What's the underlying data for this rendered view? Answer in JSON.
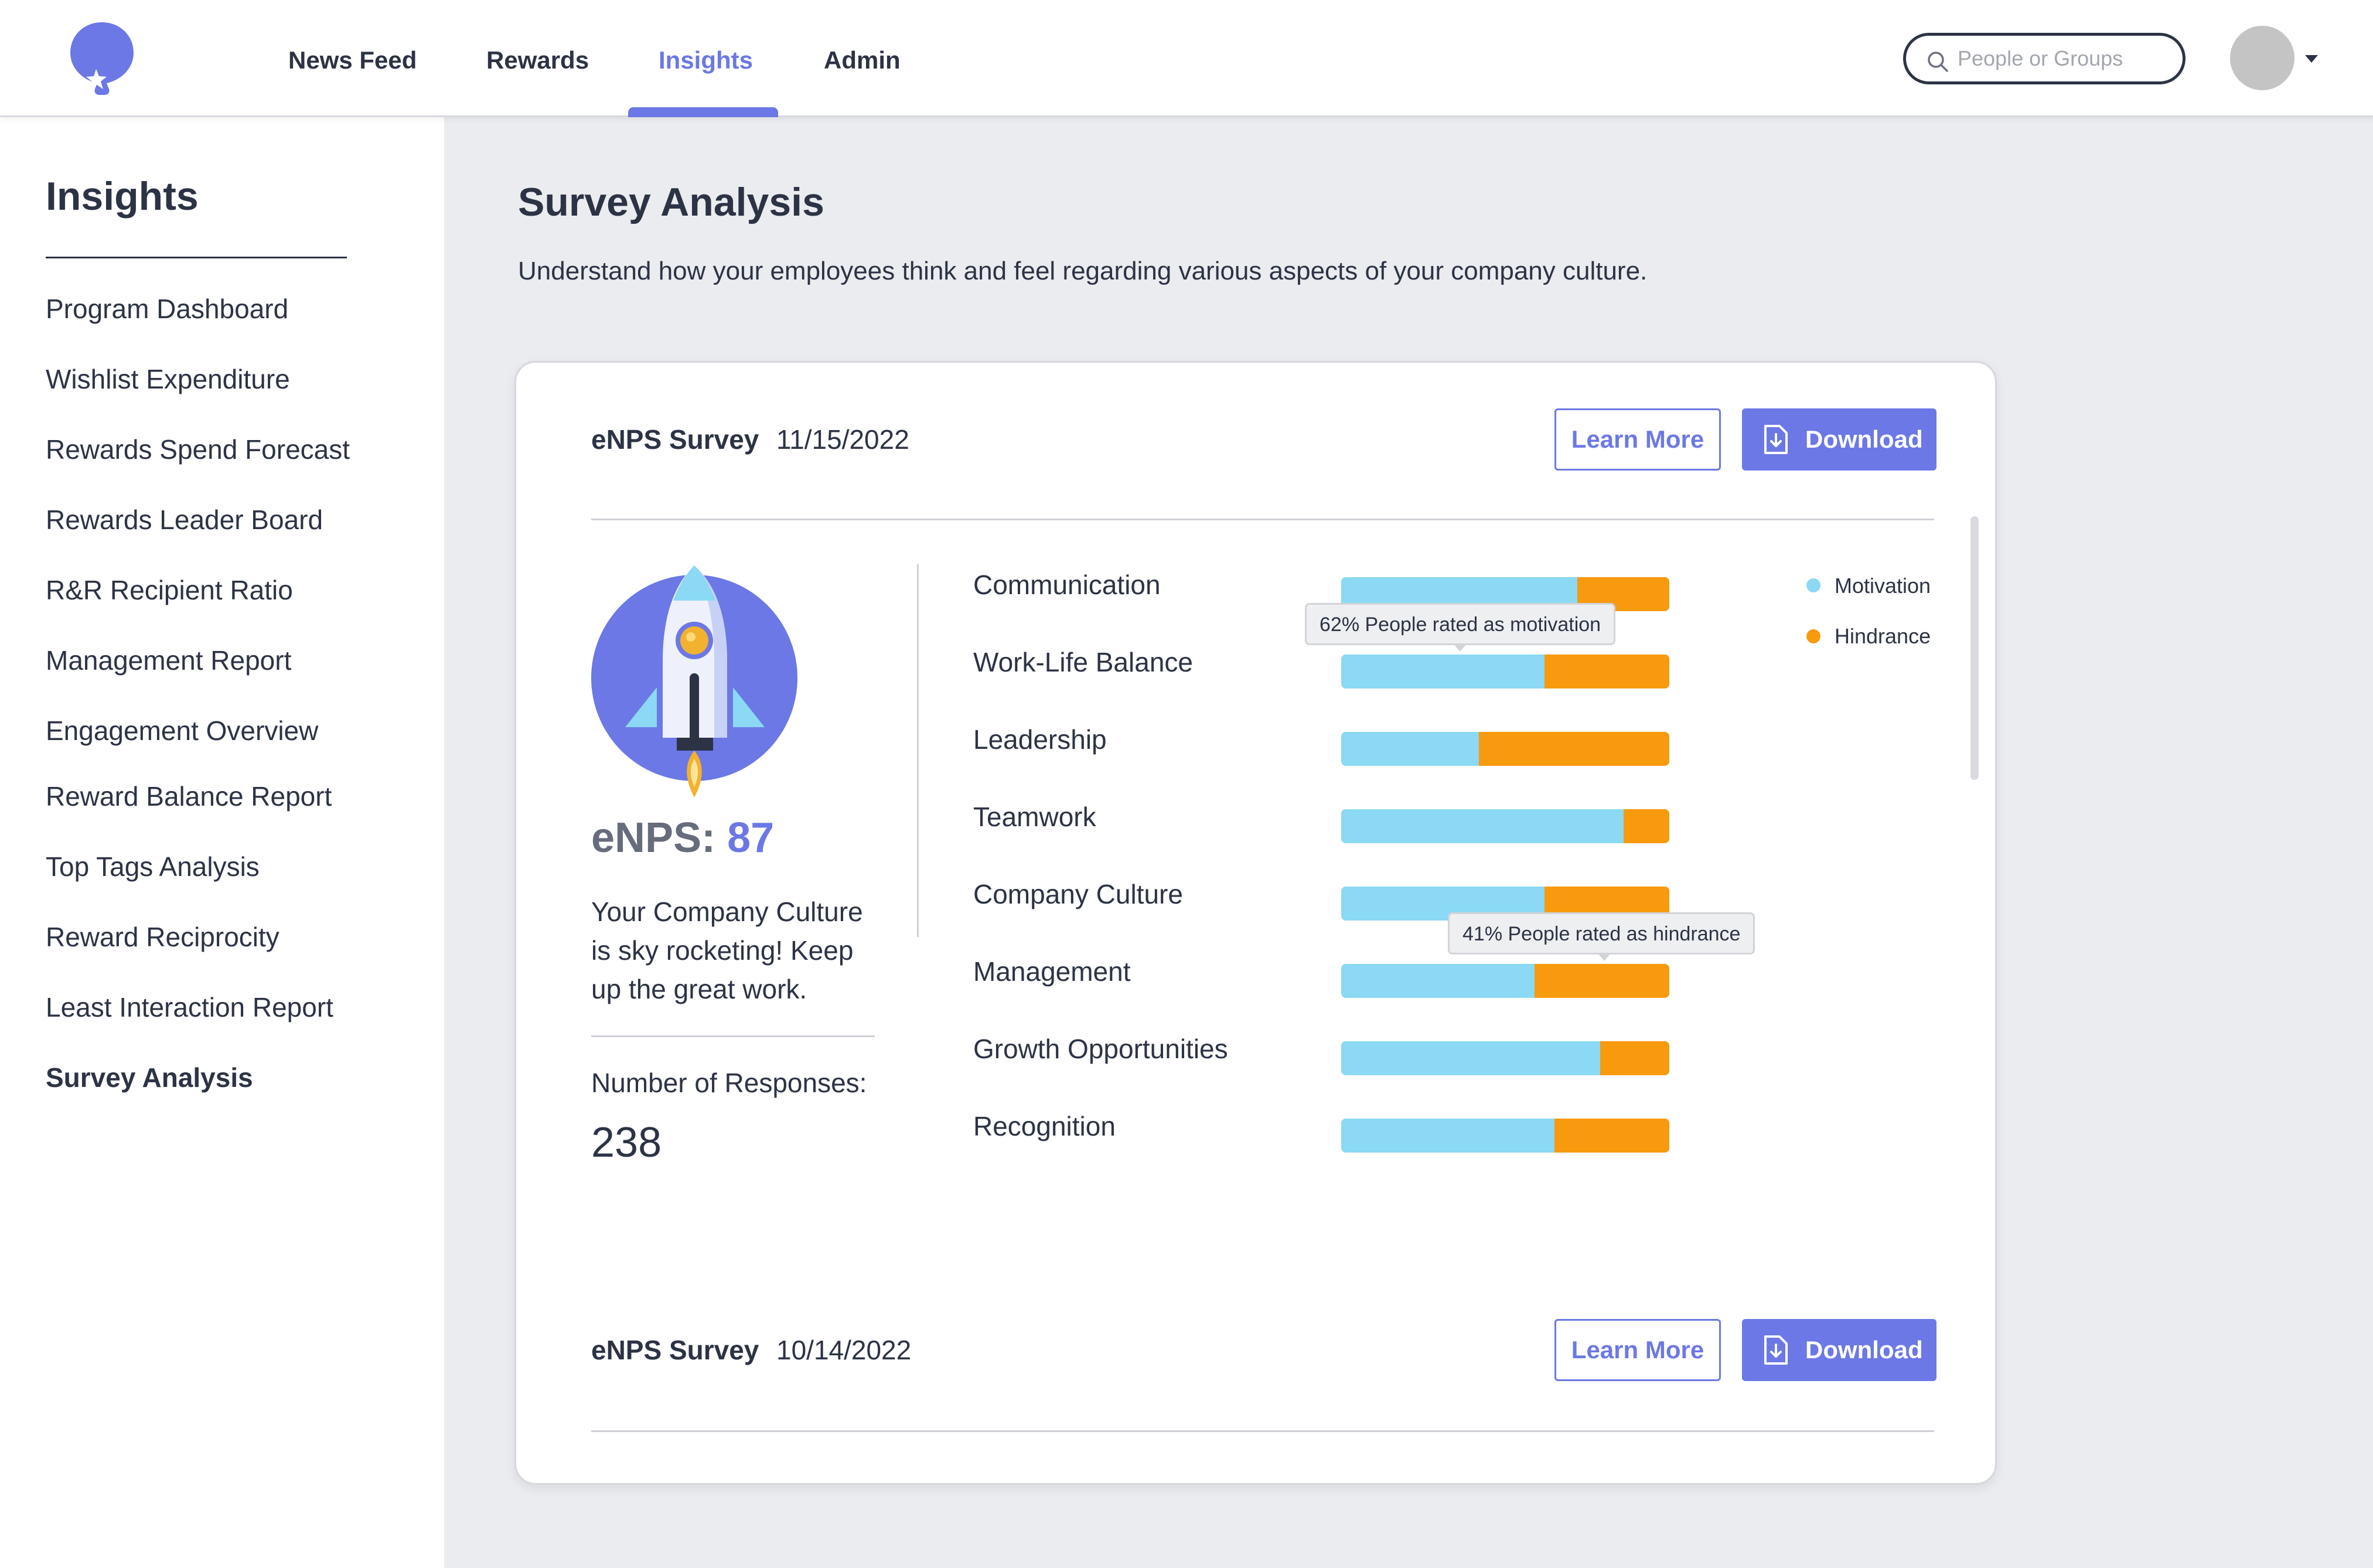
{
  "app": {
    "logo": "balloon-star-logo"
  },
  "nav": {
    "items": [
      {
        "label": "News Feed"
      },
      {
        "label": "Rewards"
      },
      {
        "label": "Insights"
      },
      {
        "label": "Admin"
      }
    ],
    "active": "Insights"
  },
  "search": {
    "placeholder": "People or Groups",
    "value": ""
  },
  "sidebar": {
    "title": "Insights",
    "items": [
      {
        "label": "Program Dashboard"
      },
      {
        "label": "Wishlist Expenditure"
      },
      {
        "label": "Rewards Spend Forecast"
      },
      {
        "label": "Rewards Leader Board"
      },
      {
        "label": "R&R Recipient Ratio"
      },
      {
        "label": "Management Report"
      },
      {
        "label": "Engagement Overview"
      },
      {
        "label": "Reward Balance Report"
      },
      {
        "label": "Top Tags Analysis"
      },
      {
        "label": "Reward Reciprocity"
      },
      {
        "label": "Least Interaction Report"
      },
      {
        "label": "Survey Analysis"
      }
    ],
    "active": "Survey Analysis"
  },
  "page": {
    "title": "Survey Analysis",
    "subtitle": "Understand how your employees think and feel regarding various aspects of your company culture."
  },
  "surveys": [
    {
      "name": "eNPS Survey",
      "date": "11/15/2022",
      "learn_more_label": "Learn More",
      "download_label": "Download",
      "enps_label": "eNPS:",
      "enps_score": "87",
      "message": "Your Company Culture is sky rocketing! Keep up the great work.",
      "responses_label": "Number of Responses:",
      "responses_value": "238"
    },
    {
      "name": "eNPS Survey",
      "date": "10/14/2022",
      "learn_more_label": "Learn More",
      "download_label": "Download"
    }
  ],
  "legend": {
    "motivation": "Motivation",
    "hindrance": "Hindrance"
  },
  "colors": {
    "accent": "#6b78e5",
    "motivation": "#8bd9f4",
    "hindrance": "#f79a0e",
    "text": "#2c3345"
  },
  "tooltips": {
    "work_life_balance": "62% People rated as motivation",
    "management": "41% People rated as hindrance"
  },
  "chart_data": {
    "type": "bar",
    "orientation": "horizontal-stacked-percent",
    "categories": [
      "Communication",
      "Work-Life Balance",
      "Leadership",
      "Teamwork",
      "Company Culture",
      "Management",
      "Growth Opportunities",
      "Recognition"
    ],
    "series": [
      {
        "name": "Motivation",
        "values": [
          72,
          62,
          42,
          86,
          62,
          59,
          79,
          65
        ]
      },
      {
        "name": "Hindrance",
        "values": [
          28,
          38,
          58,
          14,
          38,
          41,
          21,
          35
        ]
      }
    ],
    "legend": "top-right",
    "grid": false
  }
}
